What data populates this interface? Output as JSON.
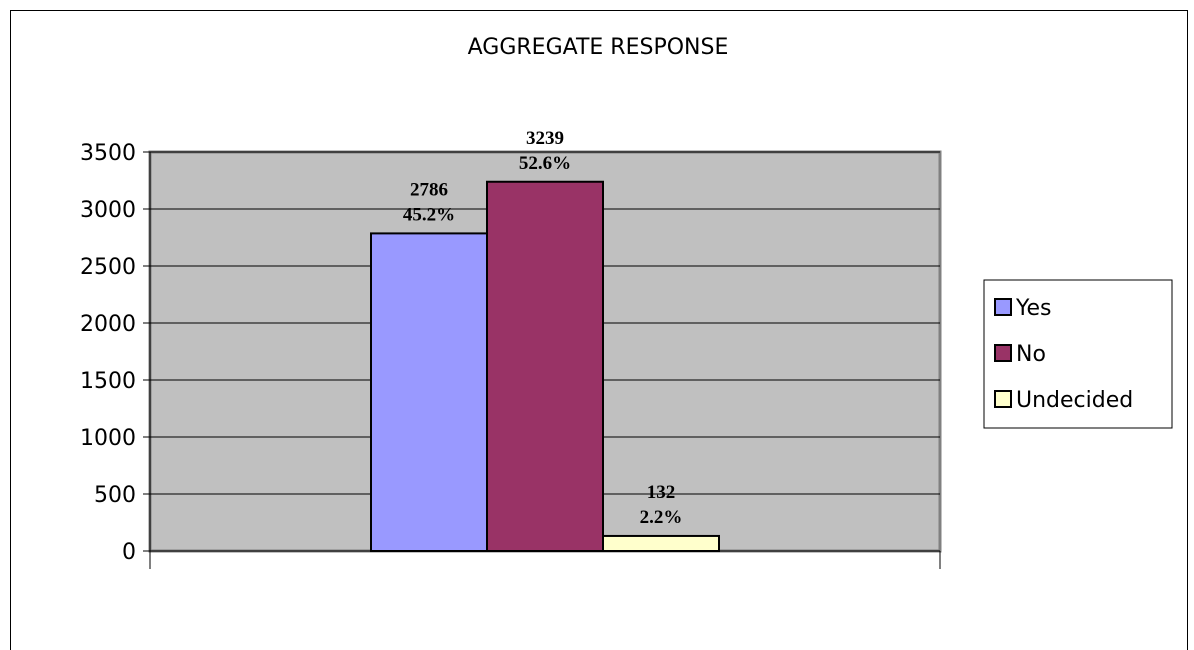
{
  "chart_data": {
    "type": "bar",
    "title": "AGGREGATE RESPONSE",
    "xlabel": "",
    "ylabel": "",
    "ylim": [
      0,
      3500
    ],
    "yticks": [
      0,
      500,
      1000,
      1500,
      2000,
      2500,
      3000,
      3500
    ],
    "grid": true,
    "legend_position": "right",
    "series": [
      {
        "name": "Yes",
        "value": 2786,
        "percent_label": "45.2%",
        "color": "#9999ff"
      },
      {
        "name": "No",
        "value": 3239,
        "percent_label": "52.6%",
        "color": "#993366"
      },
      {
        "name": "Undecided",
        "value": 132,
        "percent_label": "2.2%",
        "color": "#ffffcc"
      }
    ]
  },
  "colors": {
    "plot_background": "#c0c0c0",
    "gridline": "#000000"
  }
}
